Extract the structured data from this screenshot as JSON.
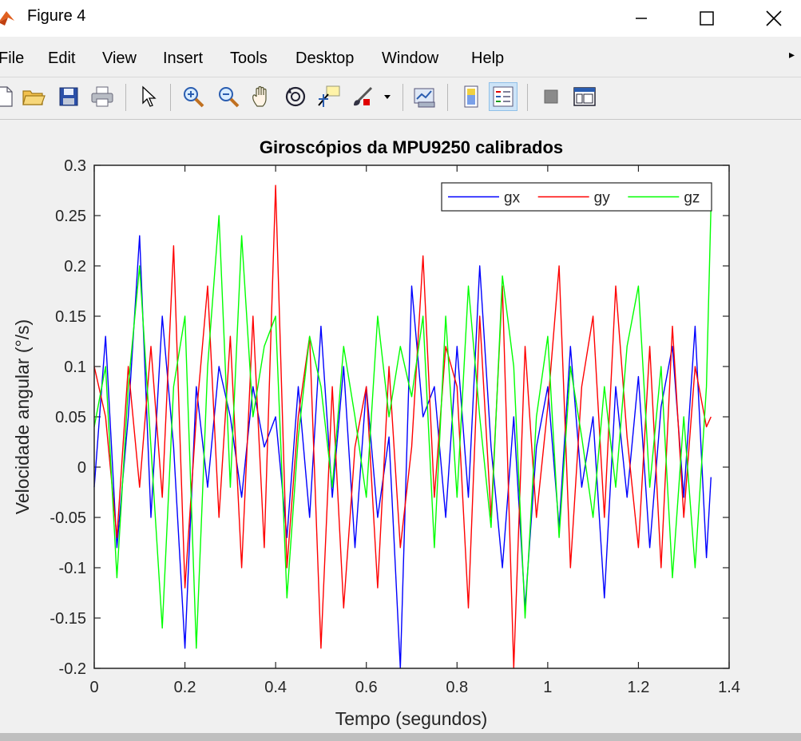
{
  "window": {
    "title": "Figure 4",
    "controls": {
      "minimize": "–",
      "maximize": "☐",
      "close": "✕"
    }
  },
  "menu": [
    "File",
    "Edit",
    "View",
    "Insert",
    "Tools",
    "Desktop",
    "Window",
    "Help"
  ],
  "toolbar": {
    "buttons": [
      "new-icon",
      "open-icon",
      "save-icon",
      "print-icon",
      "pointer-icon",
      "zoom-in-icon",
      "zoom-out-icon",
      "pan-icon",
      "rotate-icon",
      "data-cursor-icon",
      "brush-icon",
      "link-plot-icon",
      "colorbar-icon",
      "legend-icon",
      "hide-tools-icon",
      "dock-icon"
    ]
  },
  "chart_data": {
    "type": "line",
    "title": "Giroscópios da MPU9250 calibrados",
    "xlabel": "Tempo (segundos)",
    "ylabel": "Velocidade angular (°/s)",
    "xlim": [
      0,
      1.4
    ],
    "ylim": [
      -0.2,
      0.3
    ],
    "xticks": [
      0,
      0.2,
      0.4,
      0.6,
      0.8,
      1,
      1.2,
      1.4
    ],
    "xtick_labels": [
      "0",
      "0.2",
      "0.4",
      "0.6",
      "0.8",
      "1",
      "1.2",
      "1.4"
    ],
    "yticks": [
      -0.2,
      -0.15,
      -0.1,
      -0.05,
      0,
      0.05,
      0.1,
      0.15,
      0.2,
      0.25,
      0.3
    ],
    "ytick_labels": [
      "-0.2",
      "-0.15",
      "-0.1",
      "-0.05",
      "0",
      "0.05",
      "0.1",
      "0.15",
      "0.2",
      "0.25",
      "0.3"
    ],
    "legend_position": "top-right",
    "grid": false,
    "x": [
      0,
      0.025,
      0.05,
      0.075,
      0.1,
      0.125,
      0.15,
      0.175,
      0.2,
      0.225,
      0.25,
      0.275,
      0.3,
      0.325,
      0.35,
      0.375,
      0.4,
      0.425,
      0.45,
      0.475,
      0.5,
      0.525,
      0.55,
      0.575,
      0.6,
      0.625,
      0.65,
      0.675,
      0.7,
      0.725,
      0.75,
      0.775,
      0.8,
      0.825,
      0.85,
      0.875,
      0.9,
      0.925,
      0.95,
      0.975,
      1,
      1.025,
      1.05,
      1.075,
      1.1,
      1.125,
      1.15,
      1.175,
      1.2,
      1.225,
      1.25,
      1.275,
      1.3,
      1.325,
      1.35,
      1.36
    ],
    "series": [
      {
        "name": "gx",
        "color": "#0000ff",
        "values": [
          -0.02,
          0.13,
          -0.08,
          0.05,
          0.23,
          -0.05,
          0.15,
          0.02,
          -0.18,
          0.08,
          -0.02,
          0.1,
          0.05,
          -0.03,
          0.08,
          0.02,
          0.05,
          -0.07,
          0.08,
          -0.05,
          0.14,
          -0.03,
          0.1,
          -0.08,
          0.08,
          -0.05,
          0.03,
          -0.2,
          0.18,
          0.05,
          0.08,
          -0.05,
          0.12,
          -0.03,
          0.2,
          0.02,
          -0.1,
          0.05,
          -0.14,
          0.02,
          0.08,
          -0.06,
          0.12,
          -0.02,
          0.05,
          -0.13,
          0.08,
          -0.03,
          0.09,
          -0.08,
          0.06,
          0.12,
          -0.03,
          0.14,
          -0.09,
          -0.01
        ]
      },
      {
        "name": "gy",
        "color": "#ff0000",
        "values": [
          0.1,
          0.05,
          -0.07,
          0.1,
          -0.02,
          0.12,
          -0.03,
          0.22,
          -0.12,
          0.05,
          0.18,
          -0.05,
          0.13,
          -0.1,
          0.15,
          -0.08,
          0.28,
          -0.1,
          0.05,
          0.13,
          -0.18,
          0.08,
          -0.14,
          0.02,
          0.08,
          -0.12,
          0.1,
          -0.08,
          0.02,
          0.21,
          -0.03,
          0.12,
          0.08,
          -0.14,
          0.15,
          -0.05,
          0.18,
          -0.2,
          0.12,
          -0.05,
          0.06,
          0.2,
          -0.1,
          0.08,
          0.15,
          -0.05,
          0.18,
          0.03,
          -0.08,
          0.12,
          -0.1,
          0.14,
          -0.05,
          0.1,
          0.04,
          0.05
        ]
      },
      {
        "name": "gz",
        "color": "#00ff00",
        "values": [
          0.04,
          0.1,
          -0.11,
          0.08,
          0.2,
          0.02,
          -0.16,
          0.08,
          0.15,
          -0.18,
          0.1,
          0.25,
          -0.02,
          0.23,
          0.05,
          0.12,
          0.15,
          -0.13,
          0.03,
          0.13,
          0.08,
          -0.02,
          0.12,
          0.05,
          -0.03,
          0.15,
          0.05,
          0.12,
          0.07,
          0.15,
          -0.08,
          0.15,
          -0.03,
          0.18,
          0.05,
          -0.06,
          0.19,
          0.1,
          -0.15,
          0.05,
          0.13,
          -0.07,
          0.1,
          0.03,
          -0.05,
          0.08,
          -0.02,
          0.12,
          0.18,
          -0.02,
          0.1,
          -0.11,
          0.05,
          -0.1,
          0.08,
          0.26
        ]
      }
    ]
  }
}
